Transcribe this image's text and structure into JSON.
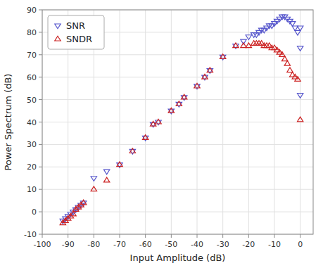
{
  "chart_data": {
    "type": "scatter",
    "xlabel": "Input Amplitude (dB)",
    "ylabel": "Power Spectrum (dB)",
    "xlim": [
      -100,
      5
    ],
    "ylim": [
      -10,
      90
    ],
    "xticks": [
      -100,
      -90,
      -80,
      -70,
      -60,
      -50,
      -40,
      -30,
      -20,
      -10,
      0
    ],
    "yticks": [
      -10,
      0,
      10,
      20,
      30,
      40,
      50,
      60,
      70,
      80,
      90
    ],
    "grid": true,
    "legend": "upper left",
    "series": [
      {
        "name": "SNR",
        "color": "#5555cc",
        "marker": "triangle-down",
        "x": [
          -92,
          -91,
          -90,
          -89,
          -88,
          -87,
          -86,
          -85,
          -84,
          -80,
          -75,
          -70,
          -65,
          -60,
          -57,
          -55,
          -50,
          -47,
          -45,
          -40,
          -37,
          -35,
          -30,
          -25,
          -22,
          -20,
          -18,
          -17,
          -16,
          -15,
          -14,
          -13,
          -12,
          -11,
          -10,
          -9,
          -8,
          -7,
          -6,
          -5,
          -4,
          -3,
          -2,
          -1,
          0,
          0,
          0
        ],
        "values": [
          -4,
          -3,
          -2,
          -1,
          0,
          1,
          2,
          3,
          4,
          15,
          18,
          21,
          27,
          33,
          39,
          40,
          45,
          48,
          51,
          56,
          60,
          63,
          69,
          74,
          76,
          78,
          79,
          79,
          80,
          81,
          81,
          82,
          83,
          83,
          84,
          85,
          86,
          87,
          87,
          86,
          85,
          84,
          82,
          80,
          82,
          73,
          52
        ]
      },
      {
        "name": "SNDR",
        "color": "#cc2222",
        "marker": "triangle-up",
        "x": [
          -92,
          -91,
          -90,
          -89,
          -88,
          -87,
          -86,
          -85,
          -84,
          -80,
          -75,
          -70,
          -65,
          -60,
          -57,
          -55,
          -50,
          -47,
          -45,
          -40,
          -37,
          -35,
          -30,
          -25,
          -22,
          -20,
          -18,
          -17,
          -16,
          -15,
          -14,
          -13,
          -12,
          -11,
          -10,
          -9,
          -8,
          -7,
          -6,
          -5,
          -4,
          -3,
          -2,
          -1,
          0
        ],
        "values": [
          -5,
          -4,
          -3,
          -2,
          -1,
          1,
          2,
          3,
          4,
          10,
          14,
          21,
          27,
          33,
          39,
          40,
          45,
          48,
          51,
          56,
          60,
          63,
          69,
          74,
          74,
          74,
          75,
          75,
          75,
          75,
          74,
          74,
          74,
          73,
          73,
          72,
          71,
          70,
          68,
          66,
          63,
          61,
          60,
          59,
          41
        ]
      }
    ]
  }
}
